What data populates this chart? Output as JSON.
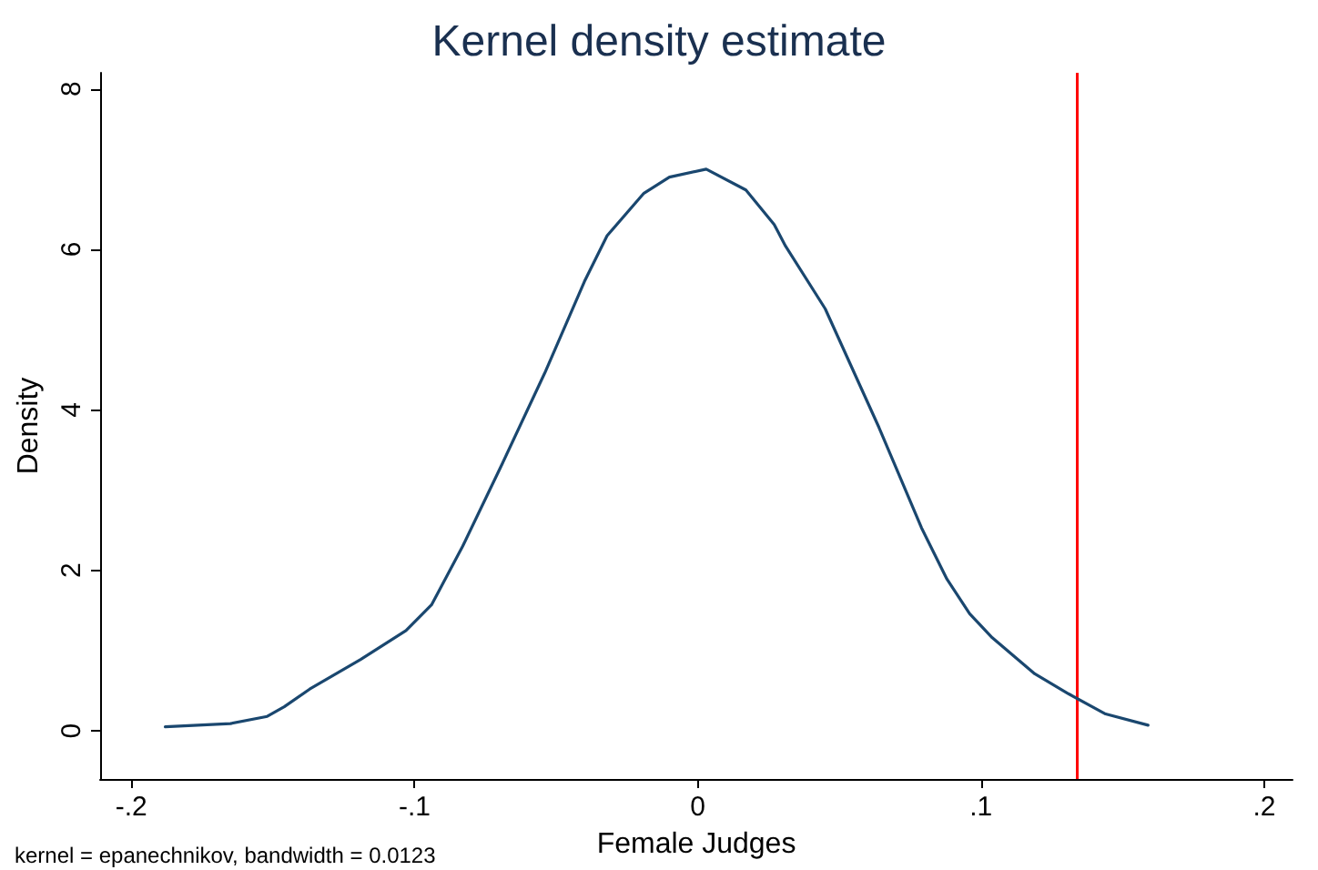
{
  "chart_data": {
    "type": "line",
    "title": "Kernel density estimate",
    "xlabel": "Female Judges",
    "ylabel": "Density",
    "annotations": [
      "kernel = epanechnikov, bandwidth = 0.0123"
    ],
    "series": [
      {
        "color": "#1a476f",
        "x": [
          -0.188,
          -0.165,
          -0.152,
          -0.146,
          -0.137,
          -0.119,
          -0.103,
          -0.094,
          -0.083,
          -0.069,
          -0.054,
          -0.04,
          -0.032,
          -0.019,
          -0.01,
          0.003,
          0.017,
          0.027,
          0.031,
          0.045,
          0.064,
          0.079,
          0.088,
          0.096,
          0.104,
          0.119,
          0.131,
          0.144,
          0.159
        ],
        "values": [
          0.05,
          0.09,
          0.18,
          0.3,
          0.52,
          0.89,
          1.25,
          1.57,
          2.3,
          3.33,
          4.46,
          5.6,
          6.17,
          6.7,
          6.9,
          7.0,
          6.74,
          6.31,
          6.04,
          5.26,
          3.78,
          2.53,
          1.89,
          1.46,
          1.16,
          0.71,
          0.46,
          0.21,
          0.07
        ]
      }
    ],
    "ref_lines": [
      {
        "axis": "x",
        "value": 0.134,
        "color": "#ff0000"
      }
    ],
    "xlim": [
      -0.211,
      0.21
    ],
    "ylim": [
      -0.6,
      8.2
    ],
    "xticks": [
      {
        "value": -0.2,
        "label": "-.2"
      },
      {
        "value": -0.1,
        "label": "-.1"
      },
      0,
      {
        "value": 0.1,
        "label": ".1"
      },
      {
        "value": 0.2,
        "label": ".2"
      }
    ],
    "yticks": [
      0,
      2,
      4,
      6,
      8
    ],
    "grid": false,
    "marker": "none",
    "line_style": "solid"
  }
}
